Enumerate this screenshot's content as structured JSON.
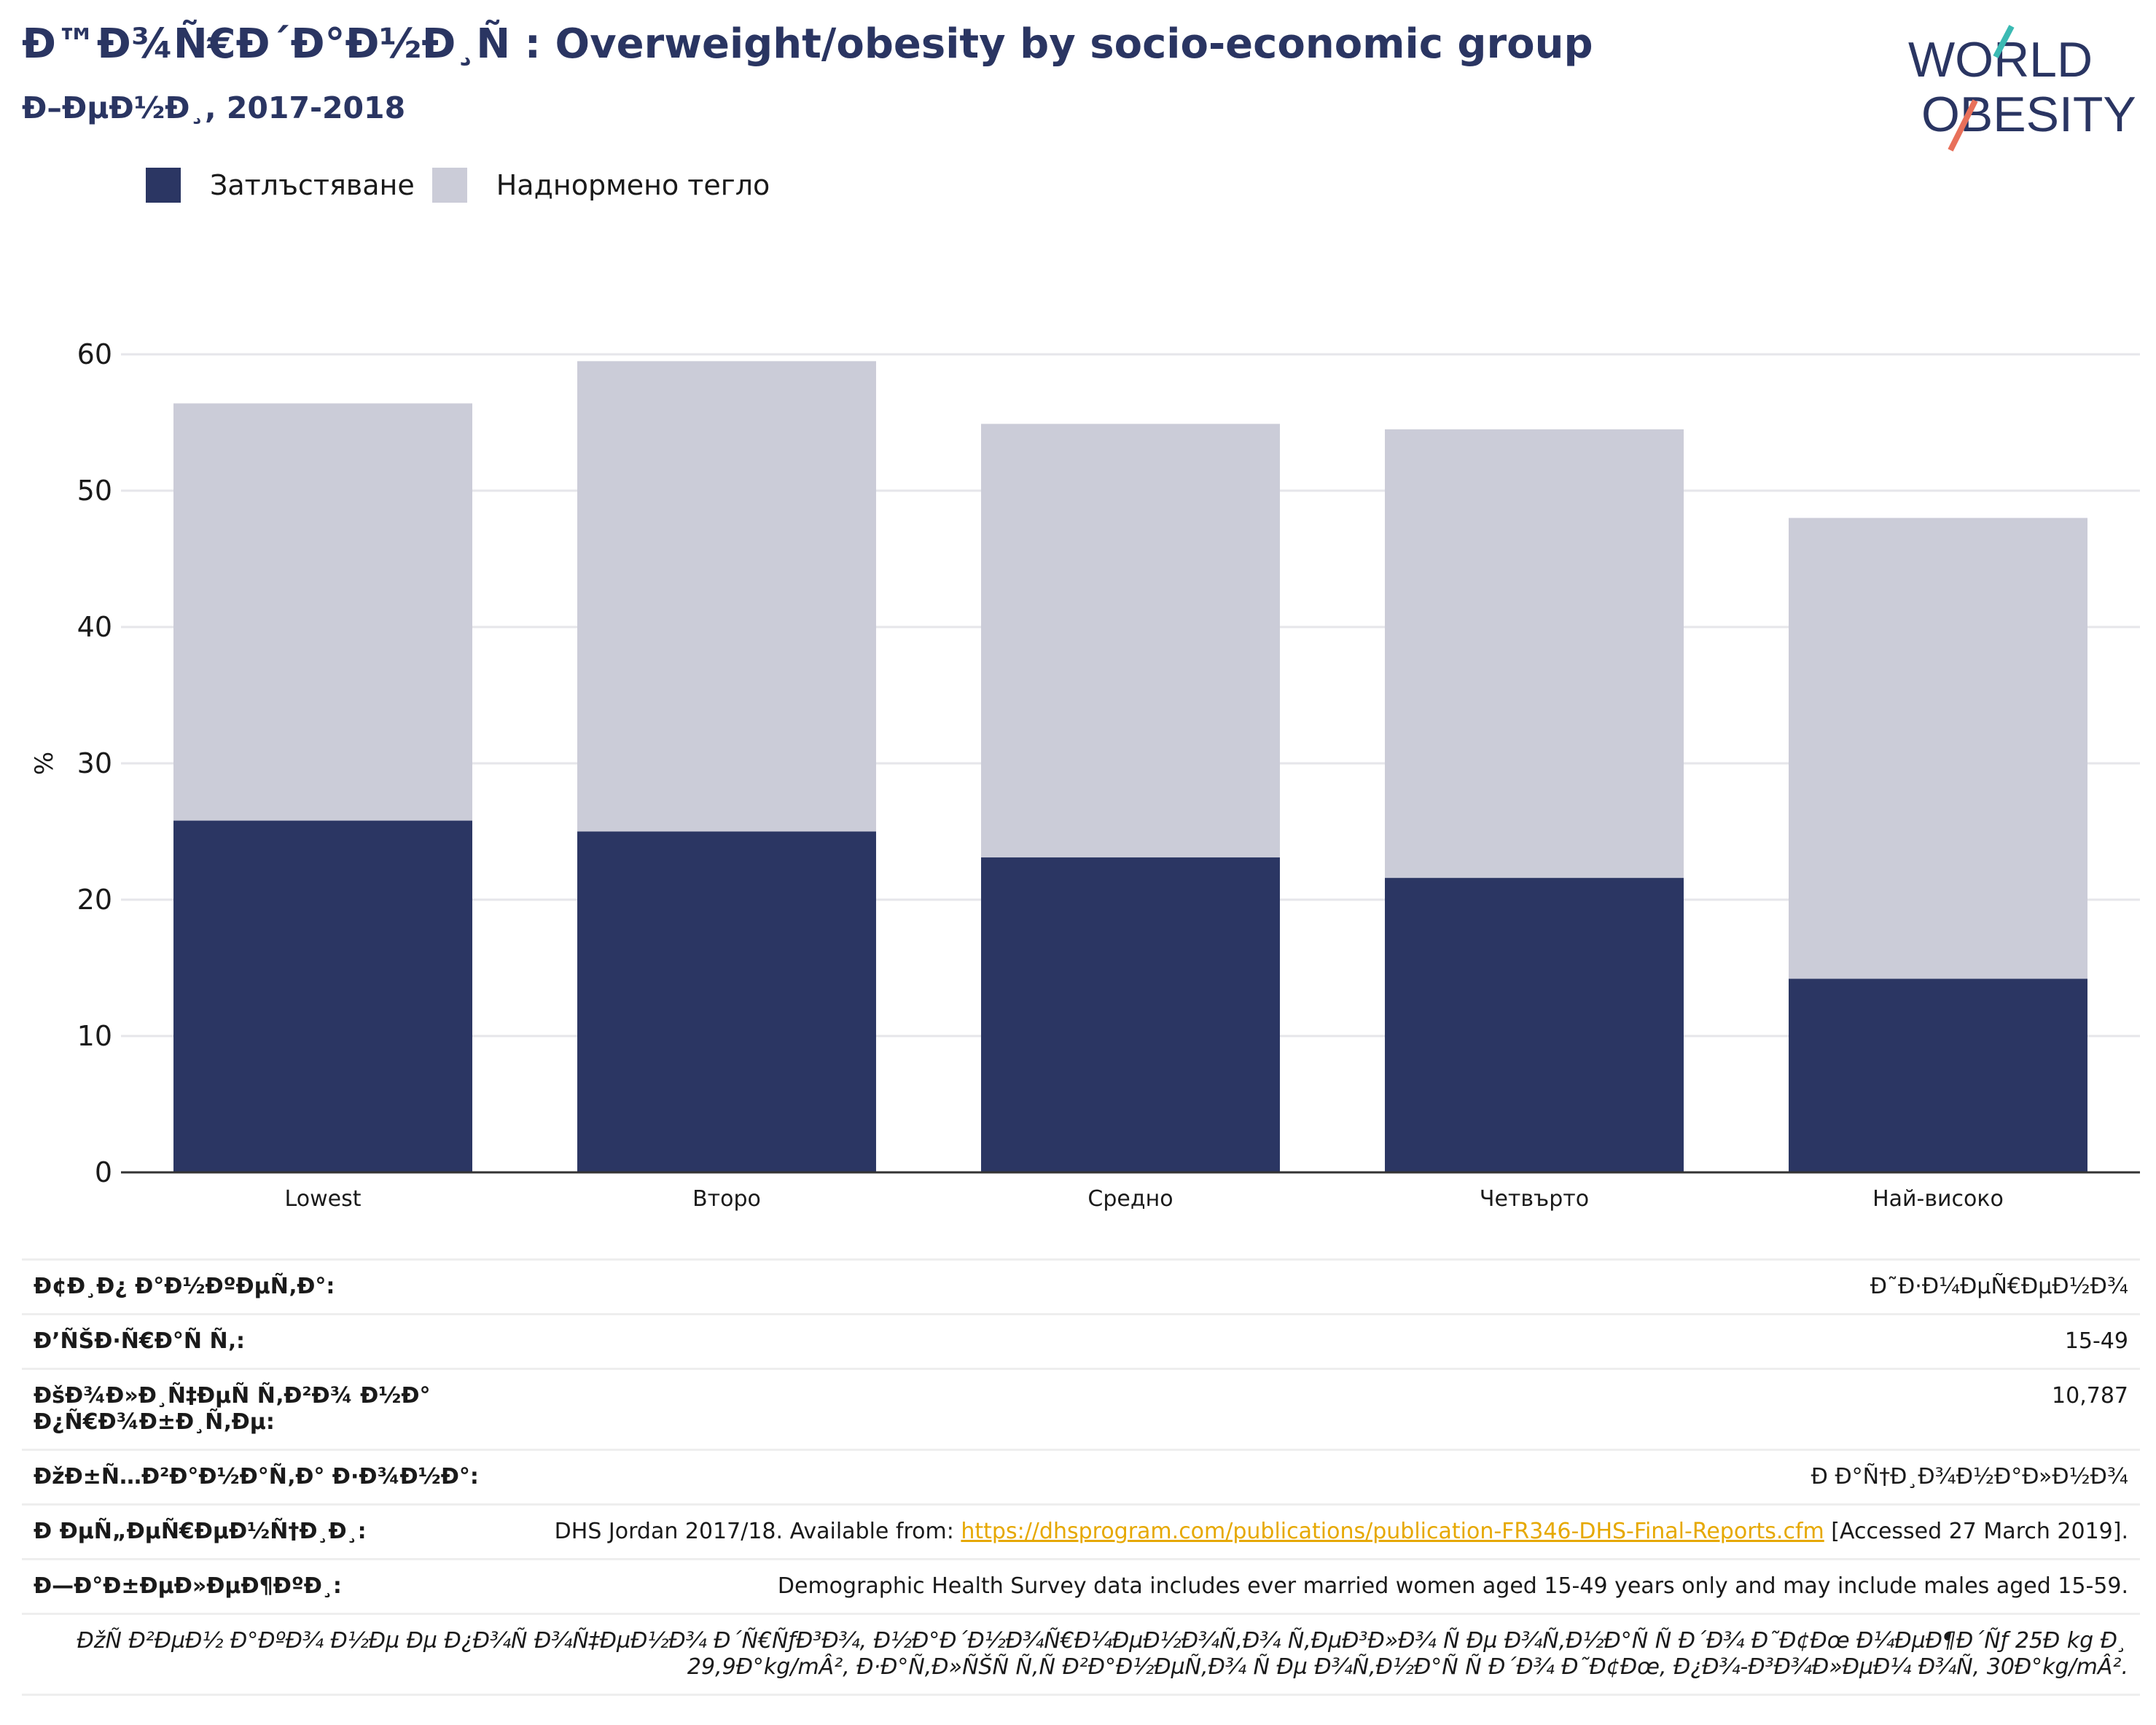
{
  "header": {
    "title": "Ð™Ð¾Ñ€Ð´Ð°Ð½Ð¸Ñ : Overweight/obesity by socio-economic group",
    "subtitle": "Ð–ÐµÐ½Ð¸, 2017-2018",
    "logo_line1": "WORLD",
    "logo_line2": "OBESITY"
  },
  "legend": [
    {
      "label": "Затлъстяване",
      "color": "#2b3663"
    },
    {
      "label": "Наднормено тегло",
      "color": "#cbccd8"
    }
  ],
  "chart_data": {
    "type": "bar",
    "stacked": true,
    "title": "Ð™Ð¾Ñ€Ð´Ð°Ð½Ð¸Ñ : Overweight/obesity by socio-economic group",
    "subtitle": "Ð–ÐµÐ½Ð¸, 2017-2018",
    "ylabel": "%",
    "ylim": [
      0,
      60
    ],
    "yticks": [
      0,
      10,
      20,
      30,
      40,
      50,
      60
    ],
    "grid": true,
    "legend_position": "top-left",
    "categories": [
      "Lowest",
      "Второ",
      "Средно",
      "Четвърто",
      "Най-високо"
    ],
    "series": [
      {
        "name": "Затлъстяване",
        "color": "#2b3663",
        "values": [
          25.8,
          25.0,
          23.1,
          21.6,
          14.2
        ]
      },
      {
        "name": "Наднормено тегло",
        "color": "#cbccd8",
        "values": [
          30.6,
          34.5,
          31.8,
          32.9,
          33.8
        ]
      }
    ]
  },
  "details": [
    {
      "key": "Ð¢Ð¸Ð¿ Ð°Ð½ÐºÐµÑ‚Ð°:",
      "value": "Ð˜Ð·Ð¼ÐµÑ€ÐµÐ½Ð¾"
    },
    {
      "key": "Ð’ÑŠÐ·Ñ€Ð°Ñ Ñ‚:",
      "value": "15-49"
    },
    {
      "key": "ÐšÐ¾Ð»Ð¸Ñ‡ÐµÑ Ñ‚Ð²Ð¾ Ð½Ð° Ð¿Ñ€Ð¾Ð±Ð¸Ñ‚Ðµ:",
      "value": "10,787"
    },
    {
      "key": "ÐžÐ±Ñ…Ð²Ð°Ð½Ð°Ñ‚Ð° Ð·Ð¾Ð½Ð°:",
      "value": "Ð Ð°Ñ†Ð¸Ð¾Ð½Ð°Ð»Ð½Ð¾"
    },
    {
      "key": "Ð ÐµÑ„ÐµÑ€ÐµÐ½Ñ†Ð¸Ð¸:",
      "value_prefix": "DHS Jordan 2017/18. Available from: ",
      "value_link": "https://dhsprogram.com/publications/publication-FR346-DHS-Final-Reports.cfm",
      "value_suffix": " [Accessed 27 March 2019]."
    },
    {
      "key": "Ð—Ð°Ð±ÐµÐ»ÐµÐ¶ÐºÐ¸:",
      "value": "Demographic Health Survey data includes ever married women aged 15-49 years only and may include males aged 15-59."
    }
  ],
  "footnote": "ÐžÑ Ð²ÐµÐ½ Ð°ÐºÐ¾ Ð½Ðµ Ðµ Ð¿Ð¾Ñ Ð¾Ñ‡ÐµÐ½Ð¾ Ð´Ñ€ÑƒÐ³Ð¾, Ð½Ð°Ð´Ð½Ð¾Ñ€Ð¼ÐµÐ½Ð¾Ñ‚Ð¾ Ñ‚ÐµÐ³Ð»Ð¾ Ñ Ðµ Ð¾Ñ‚Ð½Ð°Ñ Ñ  Ð´Ð¾ Ð˜Ð¢Ðœ Ð¼ÐµÐ¶Ð´Ñƒ 25Ð kg Ð¸ 29,9Ð°kg/mÂ², Ð·Ð°Ñ‚Ð»ÑŠÑ Ñ‚Ñ Ð²Ð°Ð½ÐµÑ‚Ð¾ Ñ Ðµ Ð¾Ñ‚Ð½Ð°Ñ Ñ  Ð´Ð¾ Ð˜Ð¢Ðœ, Ð¿Ð¾-Ð³Ð¾Ð»ÐµÐ¼ Ð¾Ñ‚ 30Ð°kg/mÂ²."
}
